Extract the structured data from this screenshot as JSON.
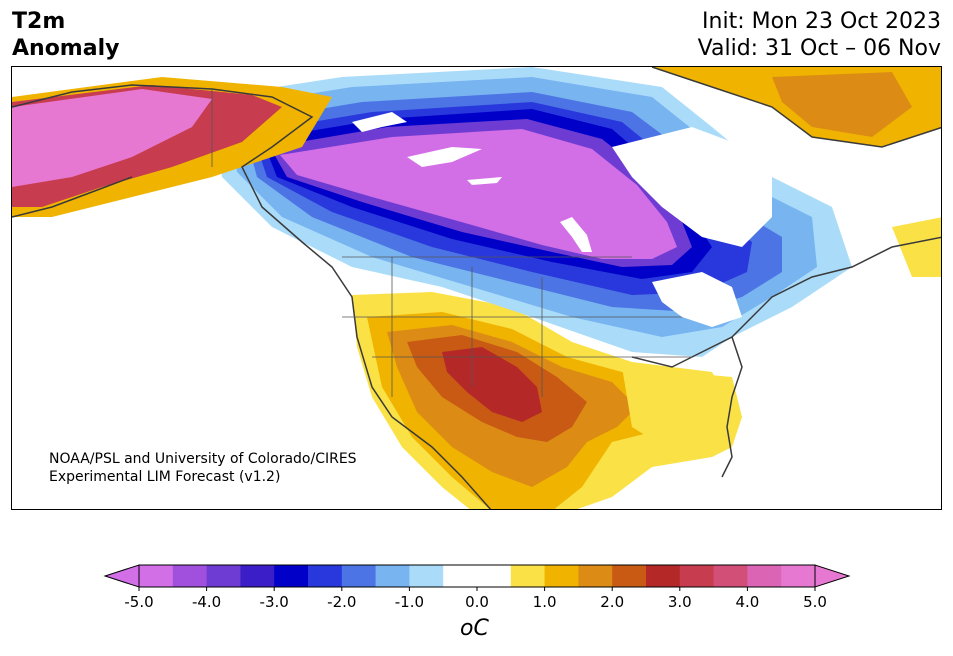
{
  "header": {
    "title_line1": "T2m",
    "title_line2": "Anomaly",
    "init": "Init: Mon 23 Oct 2023",
    "valid": "Valid: 31 Oct – 06 Nov"
  },
  "credit": {
    "line1": "NOAA/PSL and University of Colorado/CIRES",
    "line2": "Experimental LIM Forecast (v1.2)"
  },
  "colorbar": {
    "colors": [
      "#d26ee6",
      "#a050dc",
      "#6e3cd2",
      "#3c1ec8",
      "#0000c8",
      "#2838dc",
      "#4c74e4",
      "#78b4f0",
      "#aadcfa",
      "#ffffff",
      "#ffffff",
      "#fae146",
      "#f0b400",
      "#dc8c14",
      "#c85a14",
      "#b42828",
      "#c83c50",
      "#d25078",
      "#dc64b4",
      "#e678d2"
    ],
    "tick_labels": [
      "-5.0",
      "-4.0",
      "-3.0",
      "-2.0",
      "-1.0",
      "0.0",
      "1.0",
      "2.0",
      "3.0",
      "4.0",
      "5.0"
    ],
    "unit": "oC",
    "extend": "both"
  }
}
